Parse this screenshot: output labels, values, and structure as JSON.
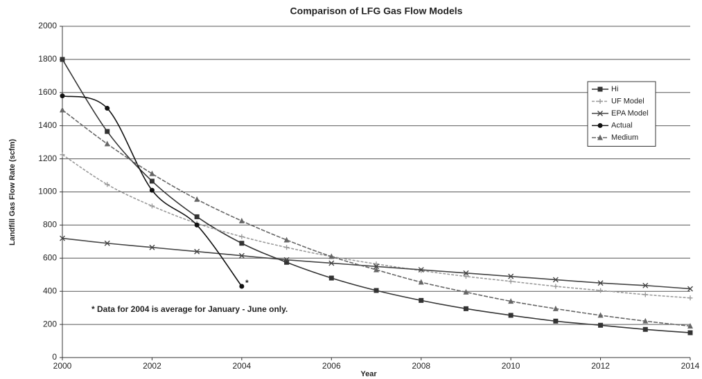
{
  "chart_data": {
    "type": "line",
    "title": "Comparison of LFG Gas Flow Models",
    "x_label": "Year",
    "y_label": "Landfill Gas Flow Rate (scfm)",
    "x": [
      2000,
      2001,
      2002,
      2003,
      2004,
      2005,
      2006,
      2007,
      2008,
      2009,
      2010,
      2011,
      2012,
      2013,
      2014
    ],
    "xlim": [
      2000,
      2014
    ],
    "xticks": [
      2000,
      2002,
      2004,
      2006,
      2008,
      2010,
      2012,
      2014
    ],
    "ylim": [
      0,
      2000
    ],
    "yticks": [
      0,
      200,
      400,
      600,
      800,
      1000,
      1200,
      1400,
      1600,
      1800,
      2000
    ],
    "grid": true,
    "legend": "upper right",
    "annotations": [
      "*",
      "* Data for 2004 is average for January - June only."
    ],
    "series": [
      {
        "name": "Hi",
        "color": "#333333",
        "marker": "square",
        "values": [
          1800,
          1365,
          1065,
          850,
          690,
          575,
          480,
          405,
          345,
          295,
          255,
          220,
          195,
          170,
          150
        ]
      },
      {
        "name": "UF Model",
        "color": "#9a9a9a",
        "marker": "plus",
        "values": [
          1225,
          1045,
          915,
          810,
          730,
          665,
          610,
          565,
          525,
          490,
          460,
          430,
          405,
          380,
          360
        ]
      },
      {
        "name": "EPA Model",
        "color": "#444444",
        "marker": "x",
        "values": [
          720,
          690,
          665,
          640,
          615,
          590,
          570,
          550,
          530,
          510,
          490,
          470,
          450,
          435,
          415
        ]
      },
      {
        "name": "Actual",
        "color": "#111111",
        "marker": "circle",
        "values": [
          1580,
          1505,
          1010,
          800,
          430,
          null,
          null,
          null,
          null,
          null,
          null,
          null,
          null,
          null,
          null
        ]
      },
      {
        "name": "Medium",
        "color": "#666666",
        "marker": "triangle",
        "values": [
          1495,
          1290,
          1110,
          955,
          825,
          710,
          610,
          530,
          455,
          395,
          340,
          295,
          255,
          220,
          190
        ]
      }
    ]
  }
}
